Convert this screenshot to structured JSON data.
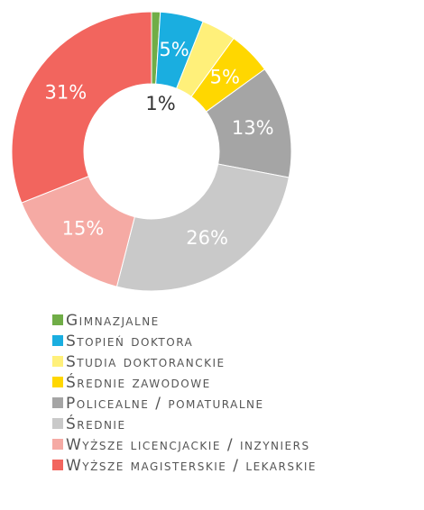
{
  "chart_data": {
    "type": "pie",
    "donut": true,
    "categories": [
      "Gimnazjalne",
      "Stopień doktora",
      "Studia doktoranckie",
      "Średnie zawodowe",
      "Policealne / pomaturalne",
      "Średnie",
      "Wyższe licencjackie / inzyniers",
      "Wyższe magisterskie / lekarskie"
    ],
    "values": [
      1,
      5,
      4,
      5,
      13,
      26,
      15,
      31
    ],
    "value_labels": [
      "1%",
      "5%",
      null,
      "5%",
      "13%",
      "26%",
      "15%",
      "31%"
    ],
    "colors": [
      "#70ad47",
      "#1aaee0",
      "#fff07a",
      "#ffd700",
      "#a5a5a5",
      "#c9c9c9",
      "#f5aaa4",
      "#f2655e"
    ]
  }
}
